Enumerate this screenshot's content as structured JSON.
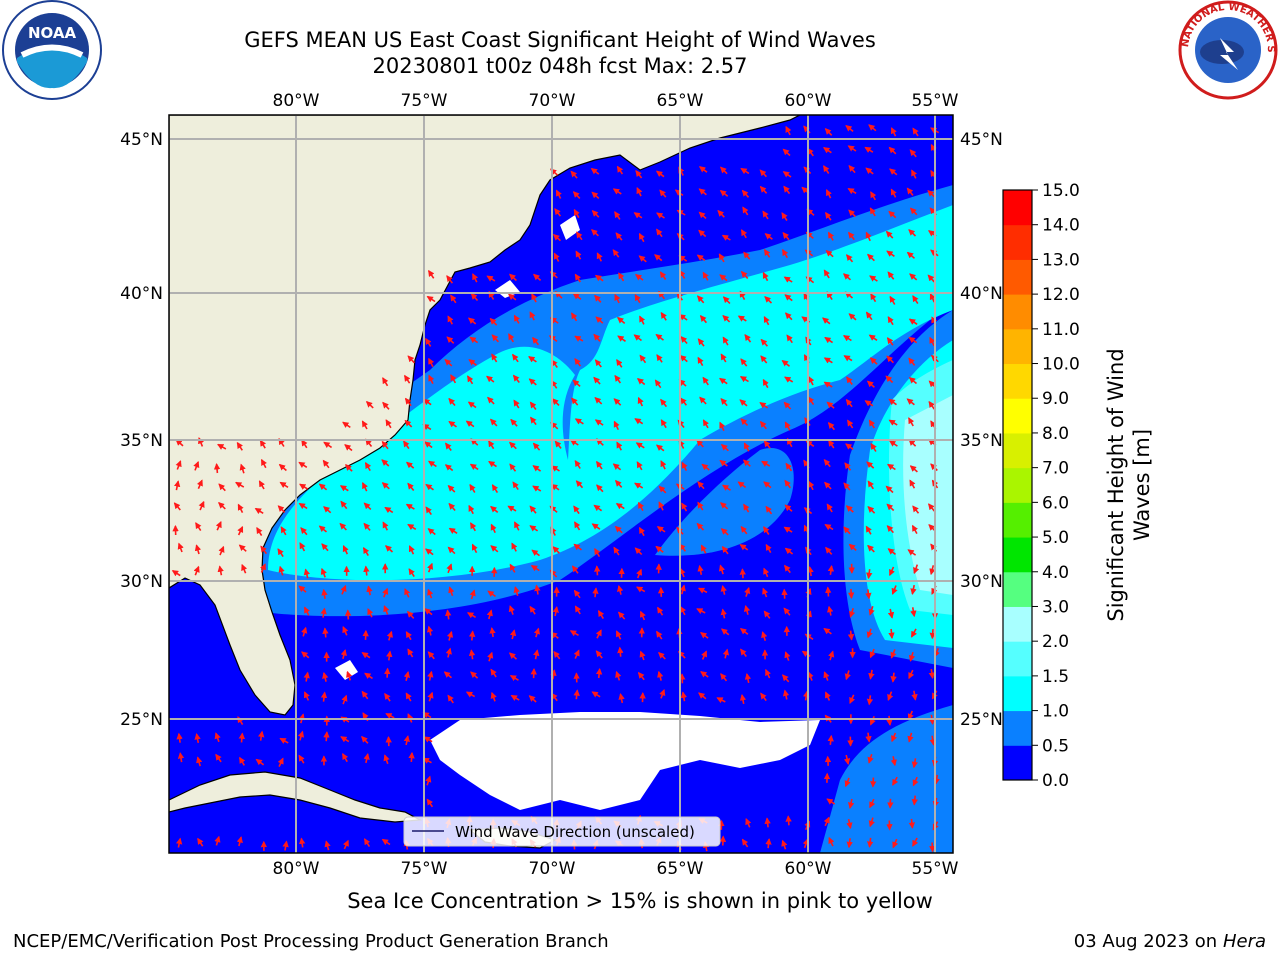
{
  "header": {
    "title_line1": "GEFS MEAN US East Coast Significant Height of Wind Waves",
    "title_line2": "20230801 t00z 048h fcst   Max: 2.57"
  },
  "map": {
    "lon_labels": [
      "80°W",
      "75°W",
      "70°W",
      "65°W",
      "60°W",
      "55°W"
    ],
    "lat_labels": [
      "45°N",
      "40°N",
      "35°N",
      "30°N",
      "25°N"
    ],
    "legend_text": "Wind Wave Direction (unscaled)",
    "wave_band_colors": [
      "#0000ff",
      "#0a80ff",
      "#00ffff",
      "#a8ffff"
    ],
    "land_color": "#eeeedc",
    "arrow_color": "#ff1a1a"
  },
  "colorbar": {
    "label_line1": "Significant Height of Wind",
    "label_line2": "Waves [m]",
    "ticks": [
      "0.0",
      "0.5",
      "1.0",
      "1.5",
      "2.0",
      "3.0",
      "4.0",
      "5.0",
      "6.0",
      "7.0",
      "8.0",
      "9.0",
      "10.0",
      "11.0",
      "12.0",
      "13.0",
      "14.0",
      "15.0"
    ],
    "colors": [
      "#0000ff",
      "#0a80ff",
      "#00ffff",
      "#55ffff",
      "#a8ffff",
      "#55ff80",
      "#00e600",
      "#55ef00",
      "#aaf500",
      "#d8f000",
      "#ffff00",
      "#ffd800",
      "#ffb400",
      "#ff8c00",
      "#ff5a00",
      "#ff2d00",
      "#ff0000"
    ]
  },
  "footer": {
    "sea_ice_note": "Sea Ice Concentration > 15% is shown in pink to yellow",
    "left": "NCEP/EMC/Verification Post Processing Product Generation Branch",
    "right_date": "03 Aug 2023 on",
    "right_host": "Hera"
  },
  "logos": {
    "left": "NOAA",
    "right_text": "NATIONAL WEATHER SERVICE"
  }
}
